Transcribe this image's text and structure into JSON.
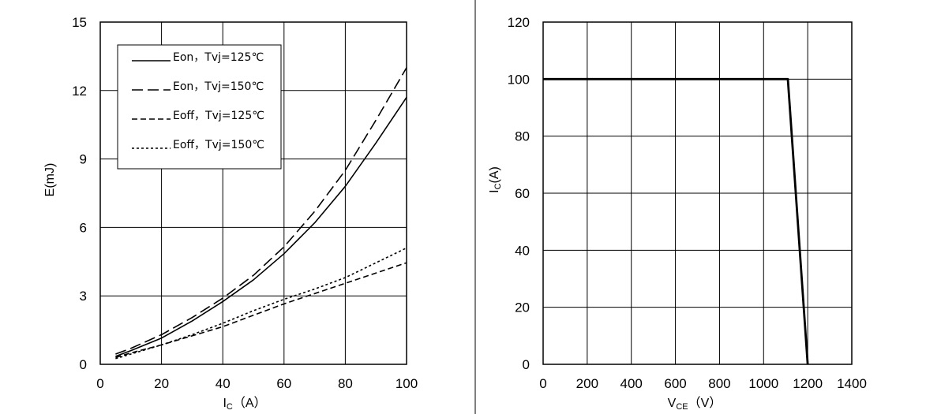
{
  "chart_data": [
    {
      "type": "line",
      "title": "",
      "xlabel_main": "I",
      "xlabel_sub": "C",
      "xlabel_unit": "（A）",
      "ylabel": "E(mJ)",
      "xlim": [
        0,
        100
      ],
      "ylim": [
        0,
        15
      ],
      "xticks": [
        0,
        20,
        40,
        60,
        80,
        100
      ],
      "yticks": [
        0,
        3,
        6,
        9,
        12,
        15
      ],
      "grid": true,
      "legend_position": "top-left",
      "series": [
        {
          "name": "Eon，Tvj=125℃",
          "dash": "solid",
          "x": [
            5,
            10,
            20,
            30,
            40,
            50,
            60,
            70,
            80,
            90,
            100
          ],
          "y": [
            0.35,
            0.6,
            1.15,
            1.9,
            2.75,
            3.7,
            4.85,
            6.2,
            7.8,
            9.7,
            11.7
          ]
        },
        {
          "name": "Eon，Tvj=150℃",
          "dash": "long-dash",
          "x": [
            5,
            10,
            20,
            30,
            40,
            50,
            60,
            70,
            80,
            90,
            100
          ],
          "y": [
            0.45,
            0.7,
            1.3,
            2.05,
            2.9,
            3.9,
            5.15,
            6.7,
            8.5,
            10.7,
            13.0
          ]
        },
        {
          "name": "Eoff，Tvj=125℃",
          "dash": "medium-dash",
          "x": [
            5,
            10,
            20,
            30,
            40,
            50,
            60,
            70,
            80,
            90,
            100
          ],
          "y": [
            0.3,
            0.5,
            0.85,
            1.25,
            1.65,
            2.15,
            2.65,
            3.1,
            3.55,
            4.0,
            4.45
          ]
        },
        {
          "name": "Eoff，Tvj=150℃",
          "dash": "short-dash",
          "x": [
            5,
            10,
            20,
            30,
            40,
            50,
            60,
            70,
            80,
            90,
            100
          ],
          "y": [
            0.25,
            0.45,
            0.85,
            1.3,
            1.8,
            2.35,
            2.85,
            3.3,
            3.8,
            4.45,
            5.1
          ]
        }
      ]
    },
    {
      "type": "line",
      "title": "",
      "xlabel_main": "V",
      "xlabel_sub": "CE",
      "xlabel_unit": "（V）",
      "ylabel_main": "I",
      "ylabel_sub": "C",
      "ylabel_unit": "(A)",
      "xlim": [
        0,
        1400
      ],
      "ylim": [
        0,
        120
      ],
      "xticks": [
        0,
        200,
        400,
        600,
        800,
        1000,
        1200,
        1400
      ],
      "yticks": [
        0,
        20,
        40,
        60,
        80,
        100,
        120
      ],
      "grid": true,
      "series": [
        {
          "dash": "solid",
          "x": [
            0,
            1110,
            1200
          ],
          "y": [
            100,
            100,
            0
          ]
        }
      ]
    }
  ]
}
